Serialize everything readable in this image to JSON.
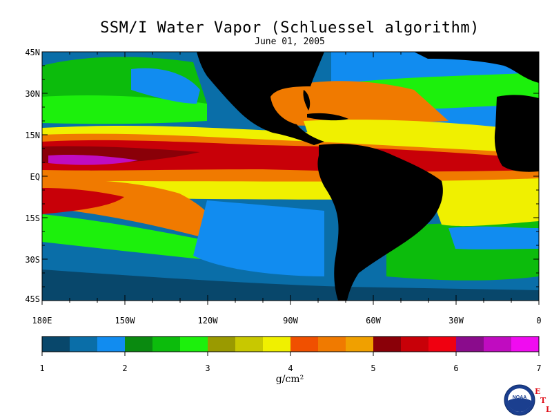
{
  "title": "SSM/I Water Vapor (Schluessel algorithm)",
  "date": "June 01, 2005",
  "lat_ticks": [
    "45N",
    "30N",
    "15N",
    "EQ",
    "15S",
    "30S",
    "45S"
  ],
  "lon_ticks": [
    "180E",
    "150W",
    "120W",
    "90W",
    "60W",
    "30W",
    "0"
  ],
  "colorbar": {
    "ticks": [
      "1",
      "2",
      "3",
      "4",
      "5",
      "6",
      "7"
    ],
    "units": "g/cm²",
    "colors": [
      "#08476b",
      "#0a6ea8",
      "#118cf0",
      "#0a8a10",
      "#0cbc0c",
      "#1cf00c",
      "#9a9a00",
      "#c8c800",
      "#f0f000",
      "#f05000",
      "#f07a00",
      "#f0a000",
      "#8a0008",
      "#c80008",
      "#f00010",
      "#8a0c8c",
      "#c00cc0",
      "#f00cf0"
    ]
  },
  "colors": {
    "land": "#000000",
    "ocean_deep": "#08476b",
    "ocean_blue": "#118cf0",
    "green": "#1cf00c",
    "dark_green": "#0cbc0c",
    "olive": "#9a9a00",
    "yellow": "#f0f000",
    "orange": "#f07a00",
    "red": "#c80008",
    "dark_red": "#8a0008",
    "magenta": "#c00cc0"
  },
  "logo": {
    "icon": "noaa-logo",
    "text": "NOAA",
    "etl_letters": [
      "E",
      "T",
      "L"
    ]
  }
}
